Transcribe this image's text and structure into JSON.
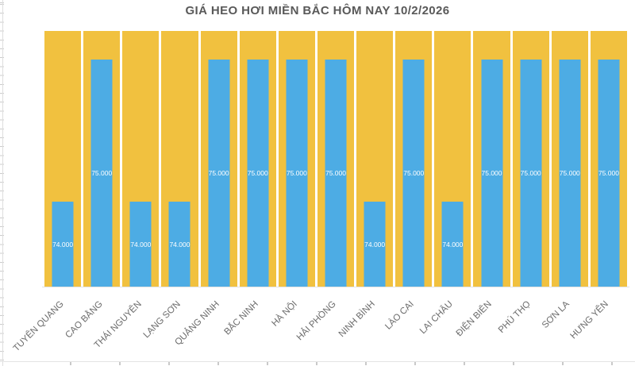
{
  "title": "GIÁ HEO HƠI MIỀN BẮC HÔM NAY 10/2/2026",
  "chart_data": {
    "type": "bar",
    "title": "GIÁ HEO HƠI MIỀN BẮC HÔM NAY 10/2/2026",
    "categories": [
      "TUYÊN QUANG",
      "CAO BẰNG",
      "THÁI NGUYÊN",
      "LẠNG SƠN",
      "QUẢNG NINH",
      "BẮC NINH",
      "HÀ NỘI",
      "HẢI PHÒNG",
      "NINH BÌNH",
      "LÀO CAI",
      "LAI CHÂU",
      "ĐIỆN BIÊN",
      "PHÚ THỌ",
      "SƠN LA",
      "HƯNG YÊN"
    ],
    "values": [
      74000,
      75000,
      74000,
      74000,
      75000,
      75000,
      75000,
      75000,
      74000,
      75000,
      74000,
      75000,
      75000,
      75000,
      75000
    ],
    "value_labels": [
      "74.000",
      "75.000",
      "74.000",
      "74.000",
      "75.000",
      "75.000",
      "75.000",
      "75.000",
      "74.000",
      "75.000",
      "74.000",
      "75.000",
      "75.000",
      "75.000",
      "75.000"
    ],
    "xlabel": "",
    "ylabel": "",
    "ylim": [
      73400,
      75200
    ],
    "grid": false,
    "legend": false,
    "bar_color": "#4DACE4",
    "column_background_color": "#F1C13F",
    "data_label_color": "#FFFFFF",
    "title_color": "#595959",
    "axis_label_color": "#6B6B6B"
  }
}
